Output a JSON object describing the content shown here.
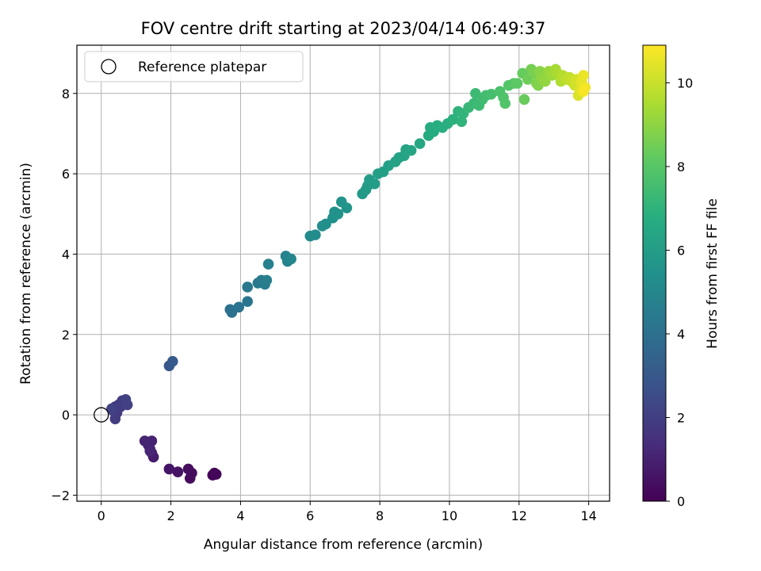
{
  "chart_data": {
    "type": "scatter",
    "title": "FOV centre drift starting at 2023/04/14 06:49:37",
    "xlabel": "Angular distance from reference (arcmin)",
    "ylabel": "Rotation from reference (arcmin)",
    "xlim": [
      -0.7,
      14.6
    ],
    "ylim": [
      -2.15,
      9.2
    ],
    "xticks": [
      0,
      2,
      4,
      6,
      8,
      10,
      12,
      14
    ],
    "yticks": [
      -2,
      0,
      2,
      4,
      6,
      8
    ],
    "grid": true,
    "colormap": "viridis",
    "colorbar": {
      "label": "Hours from first FF file",
      "range": [
        0,
        10.9
      ],
      "ticks": [
        0,
        2,
        4,
        6,
        8,
        10
      ]
    },
    "legend": {
      "placement": "top-left",
      "entries": [
        {
          "label": "Reference platepar",
          "marker": "open-circle"
        }
      ]
    },
    "reference_point": {
      "x": 0,
      "y": 0
    },
    "points": [
      {
        "x": 3.25,
        "y": -1.45,
        "t": 0.05
      },
      {
        "x": 3.2,
        "y": -1.5,
        "t": 0.1
      },
      {
        "x": 3.3,
        "y": -1.48,
        "t": 0.15
      },
      {
        "x": 2.6,
        "y": -1.45,
        "t": 0.3
      },
      {
        "x": 2.55,
        "y": -1.58,
        "t": 0.35
      },
      {
        "x": 2.5,
        "y": -1.35,
        "t": 0.4
      },
      {
        "x": 2.2,
        "y": -1.42,
        "t": 0.55
      },
      {
        "x": 1.95,
        "y": -1.35,
        "t": 0.65
      },
      {
        "x": 1.5,
        "y": -1.05,
        "t": 0.85
      },
      {
        "x": 1.45,
        "y": -0.95,
        "t": 0.9
      },
      {
        "x": 1.4,
        "y": -0.85,
        "t": 0.95
      },
      {
        "x": 1.35,
        "y": -0.75,
        "t": 1.0
      },
      {
        "x": 1.45,
        "y": -0.65,
        "t": 1.05
      },
      {
        "x": 1.25,
        "y": -0.65,
        "t": 1.1
      },
      {
        "x": 1.4,
        "y": -0.9,
        "t": 1.15
      },
      {
        "x": 0.35,
        "y": 0.1,
        "t": 1.7
      },
      {
        "x": 0.4,
        "y": 0.2,
        "t": 1.75
      },
      {
        "x": 0.45,
        "y": 0.05,
        "t": 1.8
      },
      {
        "x": 0.5,
        "y": 0.25,
        "t": 1.85
      },
      {
        "x": 0.4,
        "y": -0.1,
        "t": 1.9
      },
      {
        "x": 0.55,
        "y": 0.2,
        "t": 1.95
      },
      {
        "x": 0.6,
        "y": 0.35,
        "t": 2.0
      },
      {
        "x": 0.7,
        "y": 0.38,
        "t": 2.05
      },
      {
        "x": 0.75,
        "y": 0.25,
        "t": 2.1
      },
      {
        "x": 0.3,
        "y": 0.15,
        "t": 2.15
      },
      {
        "x": 1.95,
        "y": 1.22,
        "t": 3.0
      },
      {
        "x": 2.05,
        "y": 1.33,
        "t": 3.05
      },
      {
        "x": 3.7,
        "y": 2.62,
        "t": 4.0
      },
      {
        "x": 3.75,
        "y": 2.55,
        "t": 4.05
      },
      {
        "x": 3.95,
        "y": 2.68,
        "t": 4.15
      },
      {
        "x": 4.2,
        "y": 2.82,
        "t": 4.25
      },
      {
        "x": 4.2,
        "y": 3.18,
        "t": 4.35
      },
      {
        "x": 4.5,
        "y": 3.28,
        "t": 4.45
      },
      {
        "x": 4.6,
        "y": 3.35,
        "t": 4.5
      },
      {
        "x": 4.7,
        "y": 3.25,
        "t": 4.55
      },
      {
        "x": 4.75,
        "y": 3.35,
        "t": 4.6
      },
      {
        "x": 4.8,
        "y": 3.75,
        "t": 4.7
      },
      {
        "x": 5.3,
        "y": 3.95,
        "t": 4.85
      },
      {
        "x": 5.35,
        "y": 3.82,
        "t": 4.9
      },
      {
        "x": 5.45,
        "y": 3.88,
        "t": 4.95
      },
      {
        "x": 6.0,
        "y": 4.45,
        "t": 5.2
      },
      {
        "x": 6.15,
        "y": 4.48,
        "t": 5.25
      },
      {
        "x": 6.35,
        "y": 4.7,
        "t": 5.35
      },
      {
        "x": 6.45,
        "y": 4.75,
        "t": 5.4
      },
      {
        "x": 6.65,
        "y": 4.9,
        "t": 5.45
      },
      {
        "x": 6.7,
        "y": 5.05,
        "t": 5.5
      },
      {
        "x": 6.8,
        "y": 5.0,
        "t": 5.55
      },
      {
        "x": 6.9,
        "y": 5.3,
        "t": 5.6
      },
      {
        "x": 7.05,
        "y": 5.15,
        "t": 5.65
      },
      {
        "x": 7.5,
        "y": 5.5,
        "t": 5.8
      },
      {
        "x": 7.6,
        "y": 5.6,
        "t": 5.85
      },
      {
        "x": 7.65,
        "y": 5.7,
        "t": 5.9
      },
      {
        "x": 7.7,
        "y": 5.85,
        "t": 5.95
      },
      {
        "x": 7.85,
        "y": 5.75,
        "t": 6.0
      },
      {
        "x": 7.95,
        "y": 6.0,
        "t": 6.05
      },
      {
        "x": 8.1,
        "y": 6.05,
        "t": 6.1
      },
      {
        "x": 8.25,
        "y": 6.2,
        "t": 6.15
      },
      {
        "x": 8.45,
        "y": 6.3,
        "t": 6.2
      },
      {
        "x": 8.55,
        "y": 6.4,
        "t": 6.25
      },
      {
        "x": 8.7,
        "y": 6.45,
        "t": 6.3
      },
      {
        "x": 8.75,
        "y": 6.6,
        "t": 6.35
      },
      {
        "x": 8.9,
        "y": 6.58,
        "t": 6.4
      },
      {
        "x": 9.15,
        "y": 6.75,
        "t": 6.5
      },
      {
        "x": 9.4,
        "y": 6.95,
        "t": 6.6
      },
      {
        "x": 9.45,
        "y": 7.15,
        "t": 6.65
      },
      {
        "x": 9.55,
        "y": 7.05,
        "t": 6.7
      },
      {
        "x": 9.65,
        "y": 7.2,
        "t": 6.75
      },
      {
        "x": 9.8,
        "y": 7.15,
        "t": 6.8
      },
      {
        "x": 9.95,
        "y": 7.25,
        "t": 6.85
      },
      {
        "x": 10.1,
        "y": 7.35,
        "t": 6.9
      },
      {
        "x": 10.25,
        "y": 7.55,
        "t": 7.0
      },
      {
        "x": 10.35,
        "y": 7.3,
        "t": 7.05
      },
      {
        "x": 10.4,
        "y": 7.5,
        "t": 7.1
      },
      {
        "x": 10.55,
        "y": 7.65,
        "t": 7.2
      },
      {
        "x": 10.7,
        "y": 7.75,
        "t": 7.3
      },
      {
        "x": 10.75,
        "y": 8.0,
        "t": 7.35
      },
      {
        "x": 10.85,
        "y": 7.7,
        "t": 7.4
      },
      {
        "x": 10.95,
        "y": 7.85,
        "t": 7.45
      },
      {
        "x": 11.05,
        "y": 7.95,
        "t": 7.5
      },
      {
        "x": 11.2,
        "y": 7.98,
        "t": 7.6
      },
      {
        "x": 11.45,
        "y": 8.05,
        "t": 7.75
      },
      {
        "x": 11.55,
        "y": 7.9,
        "t": 7.8
      },
      {
        "x": 11.6,
        "y": 7.75,
        "t": 7.85
      },
      {
        "x": 11.7,
        "y": 8.2,
        "t": 7.9
      },
      {
        "x": 11.85,
        "y": 8.25,
        "t": 8.0
      },
      {
        "x": 11.95,
        "y": 8.25,
        "t": 8.1
      },
      {
        "x": 12.1,
        "y": 8.5,
        "t": 8.3
      },
      {
        "x": 12.15,
        "y": 7.85,
        "t": 8.35
      },
      {
        "x": 12.25,
        "y": 8.35,
        "t": 8.45
      },
      {
        "x": 12.35,
        "y": 8.6,
        "t": 8.55
      },
      {
        "x": 12.45,
        "y": 8.5,
        "t": 8.65
      },
      {
        "x": 12.5,
        "y": 8.25,
        "t": 8.75
      },
      {
        "x": 12.55,
        "y": 8.2,
        "t": 8.8
      },
      {
        "x": 12.6,
        "y": 8.55,
        "t": 8.9
      },
      {
        "x": 12.65,
        "y": 8.4,
        "t": 9.0
      },
      {
        "x": 12.75,
        "y": 8.3,
        "t": 9.1
      },
      {
        "x": 12.85,
        "y": 8.55,
        "t": 9.2
      },
      {
        "x": 12.95,
        "y": 8.45,
        "t": 9.3
      },
      {
        "x": 13.05,
        "y": 8.6,
        "t": 9.4
      },
      {
        "x": 13.1,
        "y": 8.5,
        "t": 9.5
      },
      {
        "x": 13.2,
        "y": 8.3,
        "t": 9.6
      },
      {
        "x": 13.25,
        "y": 8.45,
        "t": 9.7
      },
      {
        "x": 13.35,
        "y": 8.35,
        "t": 9.8
      },
      {
        "x": 13.45,
        "y": 8.4,
        "t": 9.9
      },
      {
        "x": 13.5,
        "y": 8.3,
        "t": 10.0
      },
      {
        "x": 13.6,
        "y": 8.2,
        "t": 10.1
      },
      {
        "x": 13.65,
        "y": 8.35,
        "t": 10.2
      },
      {
        "x": 13.7,
        "y": 7.95,
        "t": 10.3
      },
      {
        "x": 13.75,
        "y": 8.1,
        "t": 10.4
      },
      {
        "x": 13.8,
        "y": 8.3,
        "t": 10.5
      },
      {
        "x": 13.85,
        "y": 8.45,
        "t": 10.6
      },
      {
        "x": 13.9,
        "y": 8.15,
        "t": 10.7
      },
      {
        "x": 13.85,
        "y": 8.05,
        "t": 10.8
      }
    ]
  }
}
